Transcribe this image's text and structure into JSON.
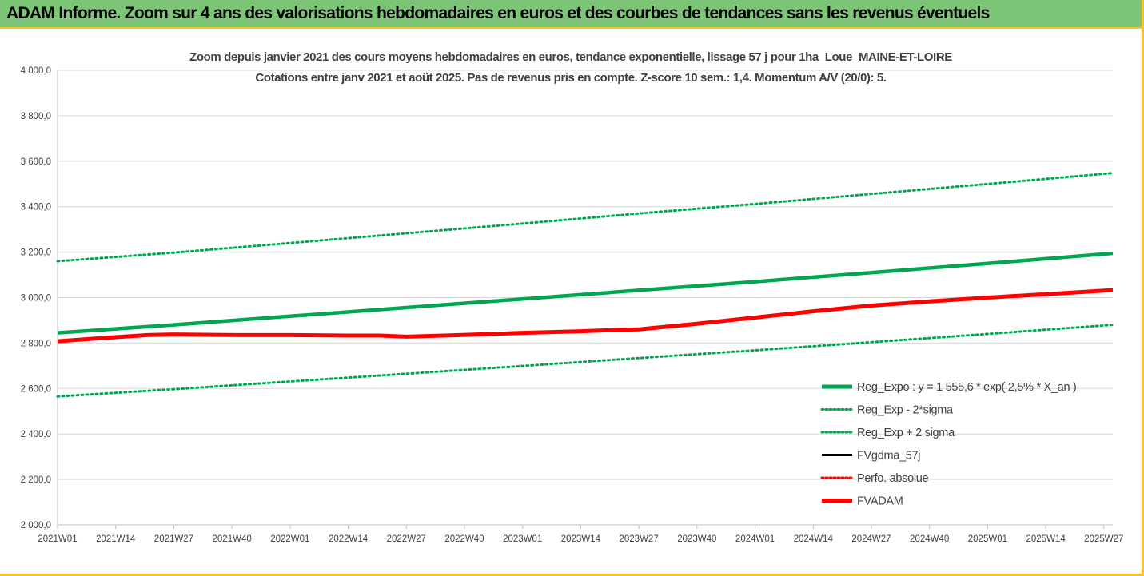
{
  "header": {
    "title": "ADAM Informe. Zoom sur 4 ans des valorisations hebdomadaires en euros et des courbes de tendances sans les revenus éventuels"
  },
  "colors": {
    "header_bg": "#7cc576",
    "frame_border": "#f2c531",
    "trend_green": "#00a651",
    "fvadam_red": "#ff0000",
    "fvgdma_black": "#000000",
    "grid": "#d9d9d9"
  },
  "chart_data": {
    "type": "line",
    "title_line1": "Zoom depuis janvier 2021 des cours moyens hebdomadaires en euros, tendance exponentielle, lissage 57 j pour 1ha_Loue_MAINE-ET-LOIRE",
    "title_line2": "Cotations entre janv 2021 et août 2025.  Pas de revenus pris en compte. Z-score 10 sem.: 1,4. Momentum A/V (20/0): 5.",
    "x_tick_labels": [
      "2021W01",
      "2021W14",
      "2021W27",
      "2021W40",
      "2022W01",
      "2022W14",
      "2022W27",
      "2022W40",
      "2023W01",
      "2023W14",
      "2023W27",
      "2023W40",
      "2024W01",
      "2024W14",
      "2024W27",
      "2024W40",
      "2025W01",
      "2025W14",
      "2025W27"
    ],
    "x_range_weeks": [
      0,
      236
    ],
    "y_tick_labels": [
      "2 000,0",
      "2 200,0",
      "2 400,0",
      "2 600,0",
      "2 800,0",
      "3 000,0",
      "3 200,0",
      "3 400,0",
      "3 600,0",
      "3 800,0",
      "4 000,0"
    ],
    "ylim": [
      2000,
      4000
    ],
    "y_step": 200,
    "grid": "horizontal",
    "legend_position": "bottom-right",
    "legend": [
      {
        "label": "Reg_Expo : y = 1 555,6 * exp( 2,5% *  X_an )",
        "style": "solid-thick",
        "color": "#00a651"
      },
      {
        "label": "Reg_Exp - 2*sigma",
        "style": "dotted",
        "color": "#00a651"
      },
      {
        "label": "Reg_Exp + 2 sigma",
        "style": "dotted",
        "color": "#00a651"
      },
      {
        "label": "FVgdma_57j",
        "style": "solid",
        "color": "#000000"
      },
      {
        "label": "Perfo. absolue",
        "style": "dotted",
        "color": "#ff0000"
      },
      {
        "label": "FVADAM",
        "style": "solid-thick",
        "color": "#ff0000"
      }
    ],
    "series": [
      {
        "name": "Reg_Expo : y = 1 555,6 * exp( 2,5% *  X_an )",
        "key": "reg",
        "x": [
          0,
          26,
          52,
          78,
          104,
          130,
          156,
          182,
          208,
          236
        ],
        "values": [
          2845,
          2880,
          2918,
          2956,
          2994,
          3032,
          3070,
          3110,
          3150,
          3195
        ]
      },
      {
        "name": "Reg_Exp - 2*sigma",
        "key": "low",
        "x": [
          0,
          26,
          52,
          78,
          104,
          130,
          156,
          182,
          208,
          236
        ],
        "values": [
          2565,
          2597,
          2631,
          2665,
          2699,
          2734,
          2768,
          2804,
          2840,
          2880
        ]
      },
      {
        "name": "Reg_Exp + 2 sigma",
        "key": "high",
        "x": [
          0,
          26,
          52,
          78,
          104,
          130,
          156,
          182,
          208,
          236
        ],
        "values": [
          3160,
          3198,
          3240,
          3283,
          3326,
          3370,
          3412,
          3456,
          3500,
          3548
        ]
      },
      {
        "name": "FVADAM",
        "key": "fvadam",
        "x": [
          0,
          10,
          20,
          26,
          40,
          52,
          65,
          72,
          78,
          90,
          104,
          117,
          125,
          130,
          143,
          156,
          169,
          182,
          195,
          208,
          221,
          236
        ],
        "values": [
          2808,
          2822,
          2835,
          2838,
          2835,
          2835,
          2833,
          2833,
          2828,
          2835,
          2845,
          2852,
          2858,
          2860,
          2885,
          2912,
          2940,
          2965,
          2983,
          3000,
          3015,
          3033
        ]
      }
    ]
  }
}
